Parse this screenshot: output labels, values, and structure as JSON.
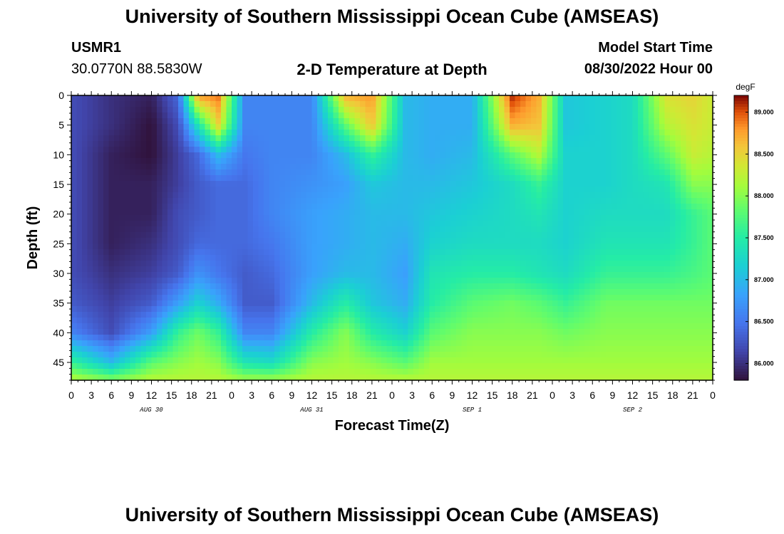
{
  "header": {
    "title": "University of Southern Mississippi Ocean Cube (AMSEAS)",
    "station_id": "USMR1",
    "coordinates": "30.0770N  88.5830W",
    "plot_title": "2-D Temperature at Depth",
    "model_start_label": "Model Start Time",
    "model_start_value": "08/30/2022 Hour 00"
  },
  "footer": {
    "title": "University of Southern Mississippi Ocean Cube (AMSEAS)"
  },
  "chart_data": {
    "type": "heatmap",
    "title": "2-D Temperature at Depth",
    "xlabel": "Forecast Time(Z)",
    "ylabel": "Depth (ft)",
    "x_range_hours": [
      0,
      96
    ],
    "y_range_ft": [
      0,
      48
    ],
    "x_tick_labels": [
      "0",
      "3",
      "6",
      "9",
      "12",
      "15",
      "18",
      "21",
      "0",
      "3",
      "6",
      "9",
      "12",
      "15",
      "18",
      "21",
      "0",
      "3",
      "6",
      "9",
      "12",
      "15",
      "18",
      "21",
      "0",
      "3",
      "6",
      "9",
      "12",
      "15",
      "18",
      "21",
      "0"
    ],
    "y_ticks": [
      0,
      5,
      10,
      15,
      20,
      25,
      30,
      35,
      40,
      45
    ],
    "date_labels": [
      {
        "text": "AUG 30",
        "hour": 12
      },
      {
        "text": "AUG 31",
        "hour": 36
      },
      {
        "text": "SEP 1",
        "hour": 60
      },
      {
        "text": "SEP 2",
        "hour": 84
      }
    ],
    "colorbar": {
      "unit": "degF",
      "range": [
        85.8,
        89.2
      ],
      "ticks": [
        "86.000",
        "86.500",
        "87.000",
        "87.500",
        "88.000",
        "88.500",
        "89.000"
      ]
    },
    "temperature_profiles": {
      "depths_ft": [
        0,
        5,
        10,
        15,
        20,
        25,
        30,
        35,
        40,
        45,
        48
      ],
      "columns": [
        {
          "hour": 0,
          "degF": [
            86.2,
            86.2,
            86.2,
            86.2,
            86.2,
            86.2,
            86.2,
            86.3,
            86.6,
            87.6,
            88.2
          ]
        },
        {
          "hour": 6,
          "degF": [
            86.0,
            86.0,
            85.9,
            85.9,
            85.9,
            85.9,
            86.0,
            86.1,
            86.2,
            87.0,
            88.0
          ]
        },
        {
          "hour": 12,
          "degF": [
            85.9,
            85.8,
            85.8,
            85.9,
            85.9,
            86.0,
            86.1,
            86.3,
            86.8,
            87.8,
            88.2
          ]
        },
        {
          "hour": 16,
          "degF": [
            86.4,
            86.2,
            86.1,
            86.1,
            86.2,
            86.2,
            86.3,
            86.8,
            87.6,
            88.0,
            88.2
          ]
        },
        {
          "hour": 19,
          "degF": [
            88.8,
            87.4,
            86.4,
            86.3,
            86.3,
            86.4,
            86.7,
            87.2,
            87.9,
            88.1,
            88.2
          ]
        },
        {
          "hour": 22,
          "degF": [
            88.9,
            88.5,
            87.0,
            86.4,
            86.4,
            86.4,
            86.5,
            86.9,
            87.6,
            88.0,
            88.2
          ]
        },
        {
          "hour": 26,
          "degF": [
            86.6,
            86.6,
            86.5,
            86.4,
            86.4,
            86.4,
            86.3,
            86.3,
            86.6,
            87.4,
            88.1
          ]
        },
        {
          "hour": 30,
          "degF": [
            86.6,
            86.6,
            86.6,
            86.6,
            86.6,
            86.5,
            86.4,
            86.3,
            86.6,
            87.3,
            88.1
          ]
        },
        {
          "hour": 36,
          "degF": [
            86.6,
            86.6,
            86.6,
            86.7,
            86.8,
            86.8,
            86.8,
            87.0,
            87.5,
            88.0,
            88.2
          ]
        },
        {
          "hour": 41,
          "degF": [
            88.7,
            87.8,
            87.0,
            86.8,
            86.9,
            86.9,
            87.0,
            87.5,
            88.0,
            88.1,
            88.2
          ]
        },
        {
          "hour": 45,
          "degF": [
            88.8,
            88.6,
            87.6,
            87.1,
            87.0,
            87.0,
            87.0,
            87.1,
            87.5,
            88.0,
            88.2
          ]
        },
        {
          "hour": 50,
          "degF": [
            87.0,
            87.0,
            87.0,
            87.0,
            87.0,
            86.9,
            86.8,
            86.9,
            87.2,
            87.8,
            88.2
          ]
        },
        {
          "hour": 54,
          "degF": [
            86.9,
            86.9,
            86.9,
            87.0,
            87.1,
            87.2,
            87.4,
            87.5,
            87.8,
            88.1,
            88.2
          ]
        },
        {
          "hour": 60,
          "degF": [
            86.9,
            86.9,
            87.0,
            87.1,
            87.2,
            87.3,
            87.5,
            87.8,
            88.0,
            88.1,
            88.2
          ]
        },
        {
          "hour": 66,
          "degF": [
            89.1,
            88.7,
            87.8,
            87.3,
            87.3,
            87.3,
            87.5,
            87.9,
            88.0,
            88.1,
            88.2
          ]
        },
        {
          "hour": 70,
          "degF": [
            88.7,
            88.6,
            88.2,
            87.6,
            87.4,
            87.3,
            87.4,
            87.8,
            88.0,
            88.1,
            88.2
          ]
        },
        {
          "hour": 74,
          "degF": [
            87.1,
            87.1,
            87.2,
            87.2,
            87.2,
            87.2,
            87.3,
            87.6,
            87.9,
            88.1,
            88.2
          ]
        },
        {
          "hour": 80,
          "degF": [
            87.2,
            87.2,
            87.2,
            87.2,
            87.3,
            87.4,
            87.6,
            87.9,
            88.0,
            88.1,
            88.2
          ]
        },
        {
          "hour": 84,
          "degF": [
            87.3,
            87.3,
            87.3,
            87.3,
            87.3,
            87.4,
            87.6,
            87.9,
            88.0,
            88.1,
            88.2
          ]
        },
        {
          "hour": 89,
          "degF": [
            88.4,
            88.2,
            87.8,
            87.4,
            87.3,
            87.4,
            87.6,
            87.9,
            88.0,
            88.1,
            88.2
          ]
        },
        {
          "hour": 93,
          "degF": [
            88.5,
            88.4,
            88.3,
            88.0,
            87.6,
            87.6,
            87.7,
            87.9,
            88.0,
            88.1,
            88.2
          ]
        },
        {
          "hour": 96,
          "degF": [
            88.3,
            88.3,
            88.2,
            88.0,
            87.8,
            87.8,
            87.8,
            87.9,
            88.0,
            88.1,
            88.2
          ]
        }
      ]
    }
  }
}
